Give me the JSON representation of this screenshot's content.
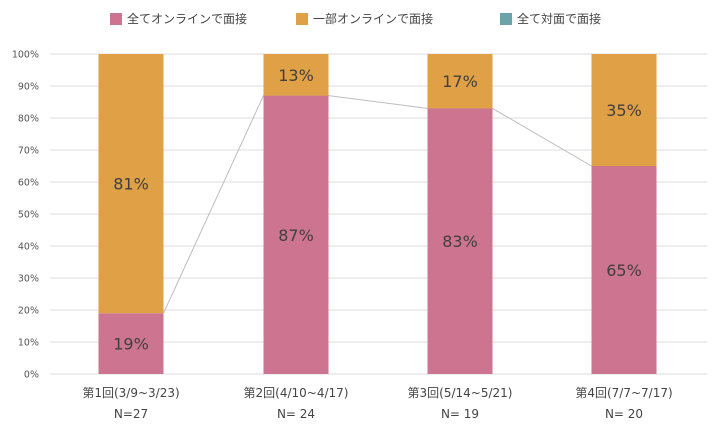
{
  "chart_data": {
    "type": "bar",
    "stacked": true,
    "percent_axis": true,
    "categories": [
      "第1回(3/9~3/23)",
      "第2回(4/10~4/17)",
      "第3回(5/14~5/21)",
      "第4回(7/7~7/17)"
    ],
    "sample_sizes": [
      "N=27",
      "N= 24",
      "N= 19",
      "N= 20"
    ],
    "series": [
      {
        "name": "全てオンラインで面接",
        "color": "#cd7590",
        "values": [
          19,
          87,
          83,
          65
        ],
        "labels": [
          "19%",
          "87%",
          "83%",
          "65%"
        ]
      },
      {
        "name": "一部オンラインで面接",
        "color": "#e0a045",
        "values": [
          81,
          13,
          17,
          35
        ],
        "labels": [
          "81%",
          "13%",
          "17%",
          "35%"
        ]
      },
      {
        "name": "全て対面で面接",
        "color": "#6aa3a9",
        "values": [
          0,
          0,
          0,
          0
        ],
        "labels": [
          "",
          "",
          "",
          ""
        ]
      }
    ],
    "y_ticks": [
      "0%",
      "10%",
      "20%",
      "30%",
      "40%",
      "50%",
      "60%",
      "70%",
      "80%",
      "90%",
      "100%"
    ],
    "ylim": [
      0,
      100
    ],
    "grid": true,
    "legend": "top",
    "series_line": true
  }
}
